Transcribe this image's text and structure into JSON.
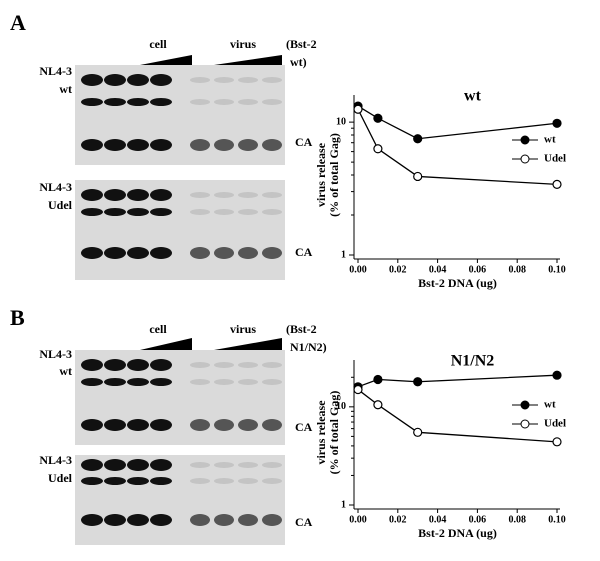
{
  "panels": [
    {
      "letter": "A",
      "cell": "cell",
      "virus": "virus",
      "bst2": [
        "(Bst-2",
        "wt)"
      ],
      "blots": [
        {
          "labels": [
            "NL4-3",
            "wt"
          ],
          "band": "CA"
        },
        {
          "labels": [
            "NL4-3",
            "Udel"
          ],
          "band": "CA"
        }
      ]
    },
    {
      "letter": "B",
      "cell": "cell",
      "virus": "virus",
      "bst2": [
        "(Bst-2",
        "N1/N2)"
      ],
      "blots": [
        {
          "labels": [
            "NL4-3",
            "wt"
          ],
          "band": "CA"
        },
        {
          "labels": [
            "NL4-3",
            "Udel"
          ],
          "band": "CA"
        }
      ]
    }
  ],
  "chart_data": [
    {
      "type": "line",
      "title": "wt",
      "xlabel": "Bst-2 DNA (ug)",
      "ylabel": [
        "virus release",
        "(% of total Gag)"
      ],
      "x": [
        0,
        0.01,
        0.03,
        0.1
      ],
      "xlim": [
        0,
        0.1
      ],
      "xticks": [
        {
          "value": 0,
          "label": "0.00"
        },
        0.02,
        0.04,
        0.06,
        0.08,
        {
          "value": 0.1,
          "label": "0.10"
        }
      ],
      "ylim": [
        1,
        16
      ],
      "yticks": [
        1,
        10
      ],
      "log_y": true,
      "legend": "right",
      "series": [
        {
          "name": "wt",
          "color": "#000000",
          "filled": true,
          "values": [
            13.2,
            10.7,
            7.5,
            9.8
          ]
        },
        {
          "name": "Udel",
          "color": "#000000",
          "filled": false,
          "values": [
            12.5,
            6.3,
            3.9,
            3.4
          ]
        }
      ]
    },
    {
      "type": "line",
      "title": "N1/N2",
      "xlabel": "Bst-2 DNA (ug)",
      "ylabel": [
        "virus release",
        "(% of total Gag)"
      ],
      "x": [
        0,
        0.01,
        0.03,
        0.1
      ],
      "xlim": [
        0,
        0.1
      ],
      "xticks": [
        {
          "value": 0,
          "label": "0.00"
        },
        0.02,
        0.04,
        0.06,
        0.08,
        {
          "value": 0.1,
          "label": "0.10"
        }
      ],
      "ylim": [
        1,
        30
      ],
      "yticks": [
        1,
        10
      ],
      "log_y": true,
      "legend": "right",
      "series": [
        {
          "name": "wt",
          "color": "#000000",
          "filled": true,
          "values": [
            16,
            19,
            18,
            21
          ]
        },
        {
          "name": "Udel",
          "color": "#000000",
          "filled": false,
          "values": [
            15,
            10.5,
            5.5,
            4.4
          ]
        }
      ]
    }
  ]
}
